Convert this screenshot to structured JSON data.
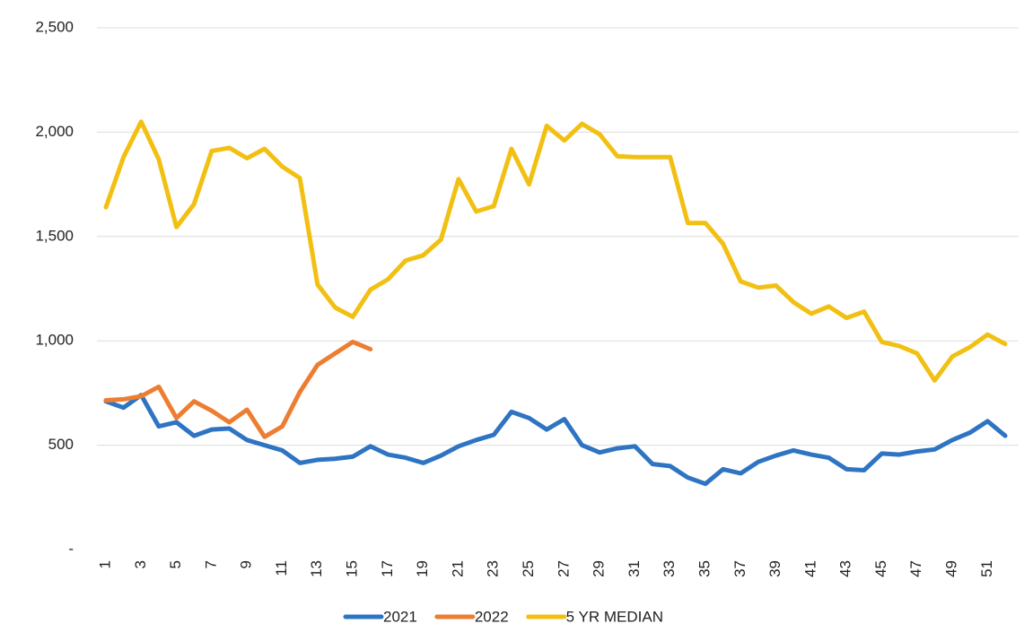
{
  "chart_data": {
    "type": "line",
    "categories": [
      1,
      null,
      3,
      null,
      5,
      null,
      7,
      null,
      9,
      null,
      11,
      null,
      13,
      null,
      15,
      null,
      17,
      null,
      19,
      null,
      21,
      null,
      23,
      null,
      25,
      null,
      27,
      null,
      29,
      null,
      31,
      null,
      33,
      null,
      35,
      null,
      37,
      null,
      39,
      null,
      41,
      null,
      43,
      null,
      45,
      null,
      47,
      null,
      49,
      null,
      51,
      null
    ],
    "series": [
      {
        "name": "2021",
        "color": "#2e74c2",
        "values": [
          710,
          680,
          740,
          590,
          610,
          545,
          575,
          580,
          525,
          500,
          475,
          415,
          430,
          435,
          445,
          495,
          455,
          440,
          415,
          450,
          495,
          525,
          550,
          660,
          630,
          575,
          625,
          500,
          465,
          485,
          495,
          410,
          400,
          345,
          315,
          385,
          365,
          420,
          450,
          475,
          455,
          440,
          385,
          380,
          460,
          455,
          470,
          480,
          525,
          560,
          615,
          545
        ]
      },
      {
        "name": "2022",
        "color": "#ed7d31",
        "values": [
          715,
          720,
          735,
          780,
          630,
          710,
          665,
          610,
          670,
          540,
          590,
          755,
          885,
          940,
          995,
          960,
          null,
          null,
          null,
          null,
          null,
          null,
          null,
          null,
          null,
          null,
          null,
          null,
          null,
          null,
          null,
          null,
          null,
          null,
          null,
          null,
          null,
          null,
          null,
          null,
          null,
          null,
          null,
          null,
          null,
          null,
          null,
          null,
          null,
          null,
          null,
          null
        ]
      },
      {
        "name": "5 YR MEDIAN",
        "color": "#f2c012",
        "values": [
          1640,
          1880,
          2050,
          1870,
          1545,
          1655,
          1910,
          1925,
          1875,
          1920,
          1835,
          1780,
          1270,
          1160,
          1115,
          1245,
          1295,
          1385,
          1410,
          1485,
          1775,
          1620,
          1645,
          1920,
          1750,
          2030,
          1960,
          2040,
          1990,
          1885,
          1880,
          1880,
          1880,
          1565,
          1565,
          1465,
          1285,
          1255,
          1265,
          1185,
          1130,
          1165,
          1110,
          1140,
          995,
          975,
          940,
          810,
          925,
          970,
          1030,
          985
        ]
      }
    ],
    "ylim": [
      0,
      2500
    ],
    "yticks": [
      {
        "value": 0,
        "label": "-"
      },
      500,
      {
        "value": 1000,
        "label": "1,000"
      },
      {
        "value": 1500,
        "label": "1,500"
      },
      {
        "value": 2000,
        "label": "2,000"
      },
      {
        "value": 2500,
        "label": "2,500"
      }
    ],
    "grid": true
  }
}
